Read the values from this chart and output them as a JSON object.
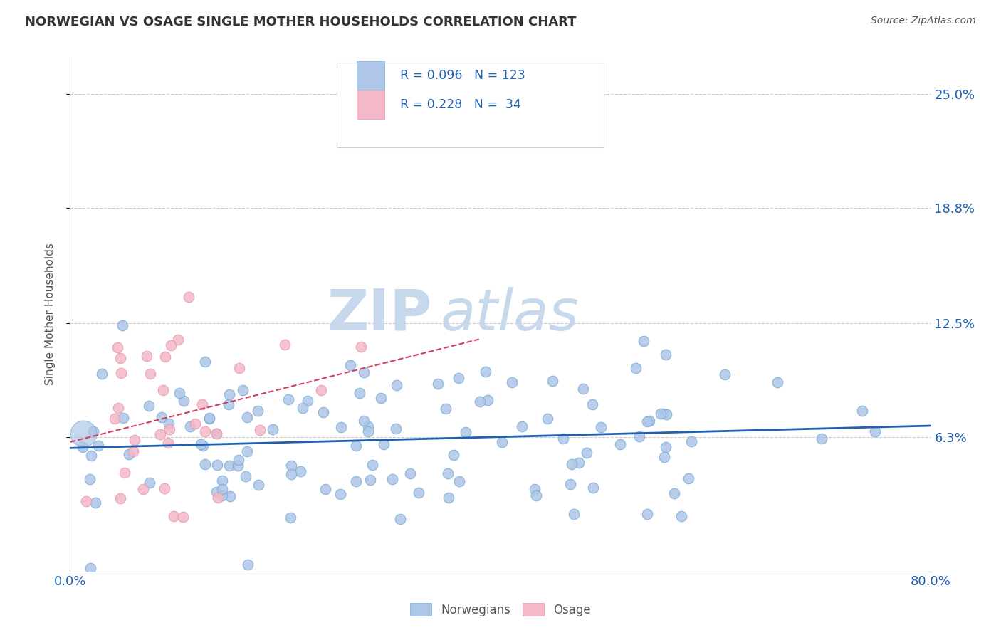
{
  "title": "NORWEGIAN VS OSAGE SINGLE MOTHER HOUSEHOLDS CORRELATION CHART",
  "source": "Source: ZipAtlas.com",
  "ylabel": "Single Mother Households",
  "watermark_zip": "ZIP",
  "watermark_atlas": "atlas",
  "xlim": [
    0.0,
    0.8
  ],
  "ylim": [
    -0.01,
    0.27
  ],
  "plot_ylim": [
    -0.01,
    0.27
  ],
  "ytick_vals": [
    0.063,
    0.125,
    0.188,
    0.25
  ],
  "ytick_labels": [
    "6.3%",
    "12.5%",
    "18.8%",
    "25.0%"
  ],
  "xtick_vals": [
    0.0,
    0.1,
    0.2,
    0.3,
    0.4,
    0.5,
    0.6,
    0.7,
    0.8
  ],
  "xtick_labels": [
    "0.0%",
    "",
    "",
    "",
    "",
    "",
    "",
    "",
    "80.0%"
  ],
  "norwegian_R": 0.096,
  "norwegian_N": 123,
  "osage_R": 0.228,
  "osage_N": 34,
  "norwegian_color": "#aec6e8",
  "norwegian_edge": "#7aadd4",
  "osage_color": "#f4b8c8",
  "osage_edge": "#e899aa",
  "norwegian_line_color": "#2060b0",
  "osage_line_color": "#d04060",
  "legend_text_color": "#2060b0",
  "title_color": "#333333",
  "axis_label_color": "#555555",
  "grid_color": "#cccccc",
  "background_color": "#ffffff",
  "watermark_color_zip": "#c8d8ec",
  "watermark_color_atlas": "#c8d8ec"
}
